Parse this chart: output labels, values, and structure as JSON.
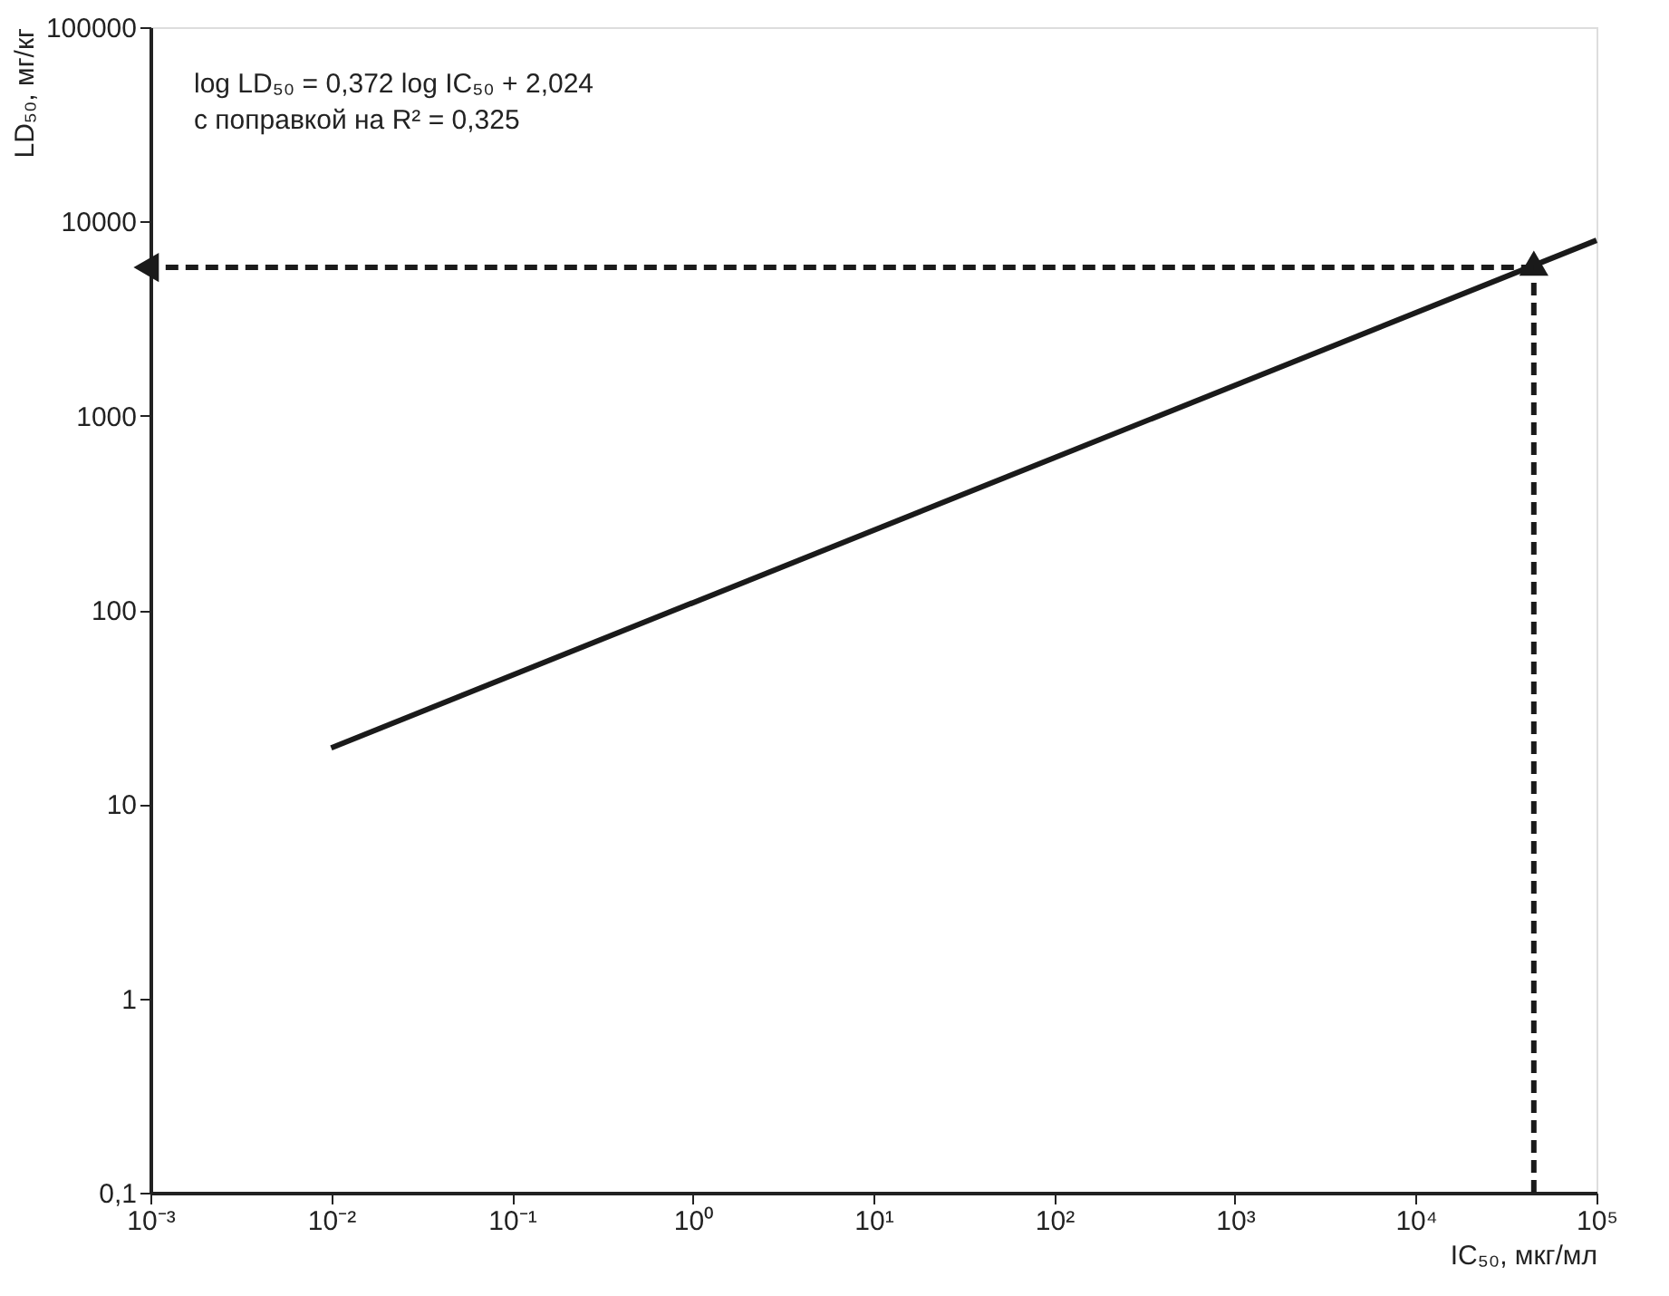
{
  "chart_data": {
    "type": "line",
    "xlabel": "IC₅₀, мкг/мл",
    "ylabel": "LD₅₀, мг/кг",
    "annotations": [
      "log LD₅₀ = 0,372 log IC₅₀ + 2,024",
      "с поправкой на R² = 0,325"
    ],
    "log": "xy",
    "grid": false,
    "xlim": [
      0.001,
      100000
    ],
    "ylim": [
      0.1,
      100000
    ],
    "xticks": [
      {
        "value": 0.001,
        "label": "10⁻³"
      },
      {
        "value": 0.01,
        "label": "10⁻²"
      },
      {
        "value": 0.1,
        "label": "10⁻¹"
      },
      {
        "value": 1,
        "label": "10⁰"
      },
      {
        "value": 10,
        "label": "10¹"
      },
      {
        "value": 100,
        "label": "10²"
      },
      {
        "value": 1000,
        "label": "10³"
      },
      {
        "value": 10000,
        "label": "10⁴"
      },
      {
        "value": 100000,
        "label": "10⁵"
      }
    ],
    "yticks": [
      {
        "value": 0.1,
        "label": "0,1"
      },
      1,
      10,
      100,
      1000,
      10000,
      100000
    ],
    "series": [
      {
        "color": "#1a1a1a",
        "line_style": "solid",
        "x": [
          0.01,
          100000
        ],
        "values": [
          19.5,
          8000
        ]
      },
      {
        "color": "#1a1a1a",
        "line_style": "dashed",
        "x": [
          45000,
          45000
        ],
        "values": [
          0.1,
          5800
        ]
      },
      {
        "color": "#1a1a1a",
        "line_style": "dashed",
        "x": [
          45000,
          0.001
        ],
        "values": [
          5800,
          5800
        ]
      }
    ]
  }
}
